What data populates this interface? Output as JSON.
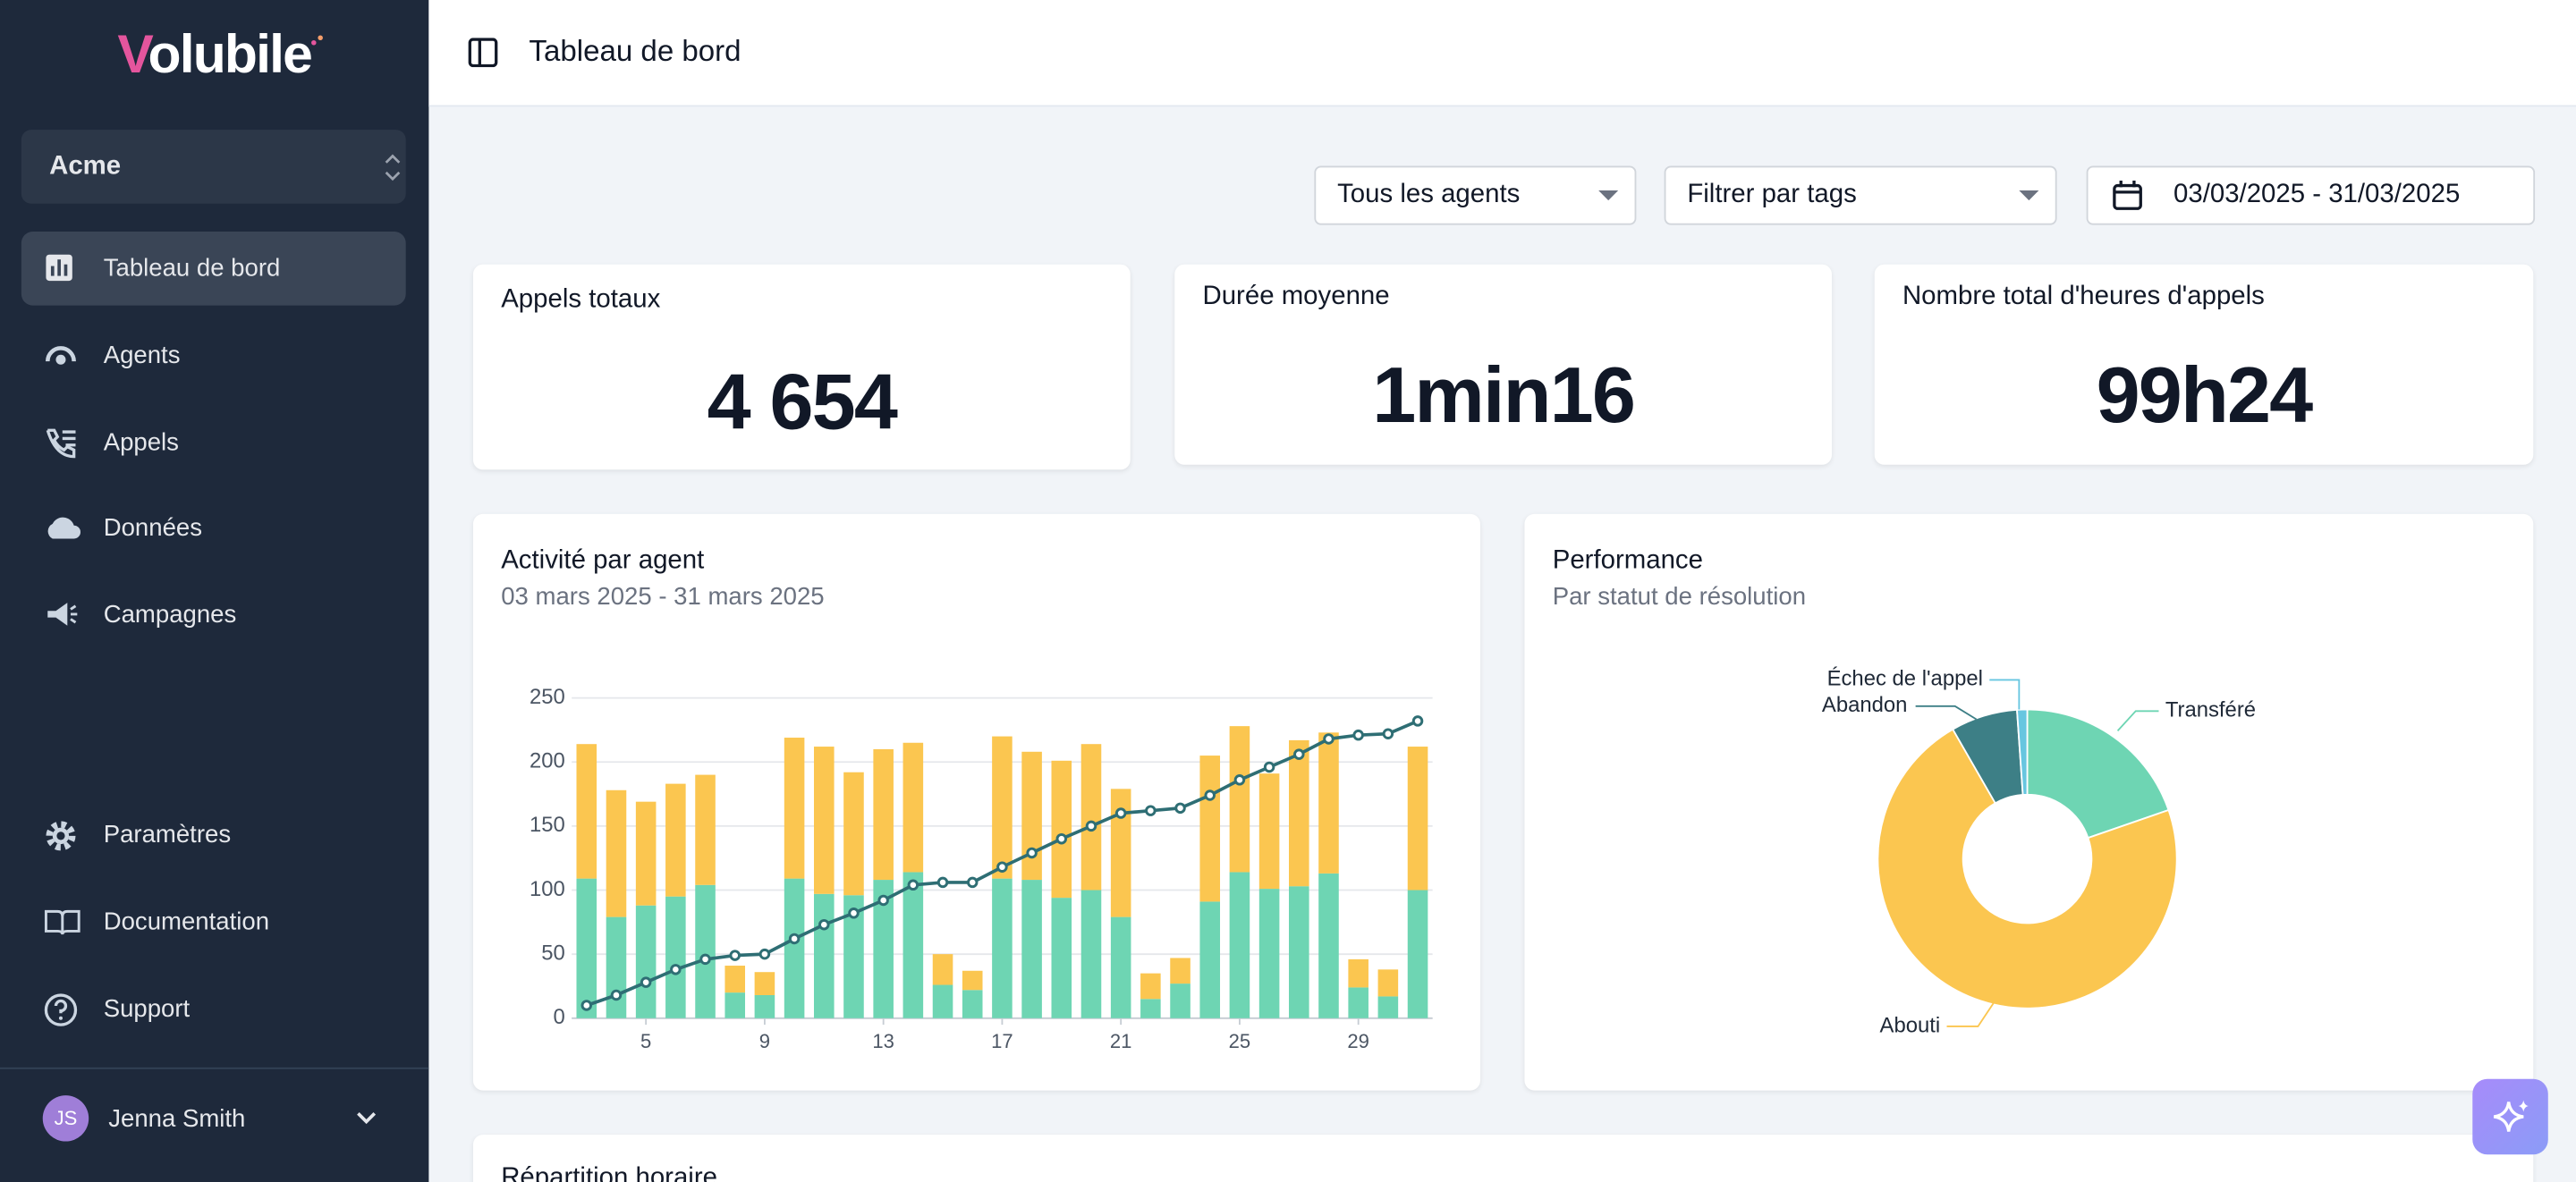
{
  "sidebar": {
    "logo": "Volubile",
    "organization": "Acme",
    "nav": [
      "Tableau de bord",
      "Agents",
      "Appels",
      "Données",
      "Campagnes"
    ],
    "footer_nav": [
      "Paramètres",
      "Documentation",
      "Support"
    ],
    "user": {
      "initials": "JS",
      "name": "Jenna Smith"
    }
  },
  "header": {
    "title": "Tableau de bord"
  },
  "filters": {
    "agents": "Tous les agents",
    "tags": "Filtrer par tags",
    "date_range": "03/03/2025 - 31/03/2025"
  },
  "kpis": [
    {
      "label": "Appels totaux",
      "value": "4 654"
    },
    {
      "label": "Durée moyenne",
      "value": "1min16"
    },
    {
      "label": "Nombre total d'heures d'appels",
      "value": "99h24"
    }
  ],
  "chart_data": [
    {
      "type": "bar",
      "stacked": true,
      "title": "Activité par agent",
      "subtitle": "03 mars 2025 - 31 mars 2025",
      "x": [
        3,
        4,
        5,
        6,
        7,
        8,
        9,
        10,
        11,
        12,
        13,
        14,
        15,
        16,
        17,
        18,
        19,
        20,
        21,
        22,
        23,
        24,
        25,
        26,
        27,
        28,
        29,
        30,
        31
      ],
      "xlim": [
        2.5,
        31.5
      ],
      "xticks": [
        5,
        9,
        13,
        17,
        21,
        25,
        29
      ],
      "ylim": [
        0,
        250
      ],
      "yticks": [
        0,
        50,
        100,
        150,
        200,
        250
      ],
      "grid": true,
      "series": [
        {
          "color": "#6ed5b3",
          "values": [
            109,
            79,
            88,
            95,
            104,
            20,
            18,
            109,
            97,
            96,
            108,
            114,
            26,
            22,
            109,
            108,
            94,
            100,
            79,
            15,
            27,
            91,
            114,
            101,
            103,
            113,
            24,
            17,
            100
          ]
        },
        {
          "color": "#fbc650",
          "values": [
            105,
            99,
            81,
            88,
            86,
            21,
            18,
            110,
            115,
            96,
            102,
            101,
            24,
            15,
            111,
            100,
            107,
            114,
            100,
            20,
            20,
            114,
            114,
            90,
            114,
            110,
            22,
            21,
            112
          ]
        },
        {
          "type": "line",
          "color": "#2e6e74",
          "values": [
            10,
            18,
            28,
            38,
            46,
            49,
            50,
            62,
            73,
            82,
            92,
            104,
            106,
            106,
            118,
            129,
            140,
            150,
            160,
            162,
            164,
            174,
            186,
            196,
            206,
            218,
            221,
            222,
            232
          ]
        }
      ]
    },
    {
      "type": "pie",
      "title": "Performance",
      "subtitle": "Par statut de résolution",
      "hole": 0.43,
      "categories": [
        "Transféré",
        "Abouti",
        "Abandon",
        "Échec de l'appel"
      ],
      "values": [
        19.7,
        72,
        7.2,
        1.1
      ],
      "colors": [
        "#6ed5b3",
        "#fbc650",
        "#3d7f86",
        "#67c6e0"
      ]
    }
  ],
  "sections": [
    "Répartition horaire"
  ]
}
